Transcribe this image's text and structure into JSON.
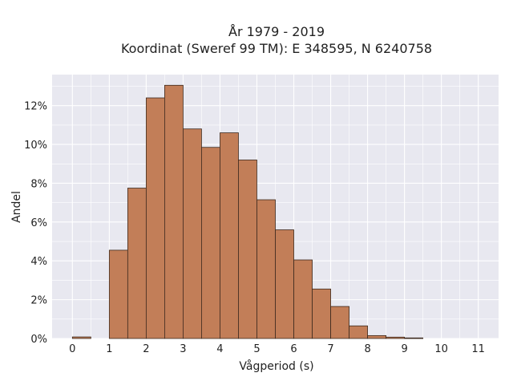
{
  "chart_data": {
    "type": "bar",
    "title_line1": "År 1979 - 2019",
    "title_line2": "Koordinat (Sweref 99 TM): E 348595, N 6240758",
    "xlabel": "Vågperiod (s)",
    "ylabel": "Andel",
    "bin_width": 0.5,
    "bin_starts": [
      0,
      0.5,
      1,
      1.5,
      2,
      2.5,
      3,
      3.5,
      4,
      4.5,
      5,
      5.5,
      6,
      6.5,
      7,
      7.5,
      8,
      8.5,
      9,
      9.5,
      10,
      10.5
    ],
    "values": [
      0.08,
      0,
      4.55,
      7.75,
      12.4,
      13.05,
      10.8,
      9.85,
      10.6,
      9.2,
      7.15,
      5.6,
      4.05,
      2.55,
      1.65,
      0.65,
      0.15,
      0.07,
      0.03,
      0,
      0,
      0
    ],
    "xlim": [
      -0.55,
      11.55
    ],
    "ylim": [
      0,
      13.6
    ],
    "x_ticks": [
      "0",
      "1",
      "2",
      "3",
      "4",
      "5",
      "6",
      "7",
      "8",
      "9",
      "10",
      "11"
    ],
    "y_ticks": [
      "0%",
      "2%",
      "4%",
      "6%",
      "8%",
      "10%",
      "12%"
    ],
    "grid": true,
    "colors": {
      "bar_fill": "#c27e58",
      "bar_edge": "#3d2a1e",
      "plot_bg": "#e8e8f0",
      "grid": "#ffffff"
    }
  }
}
